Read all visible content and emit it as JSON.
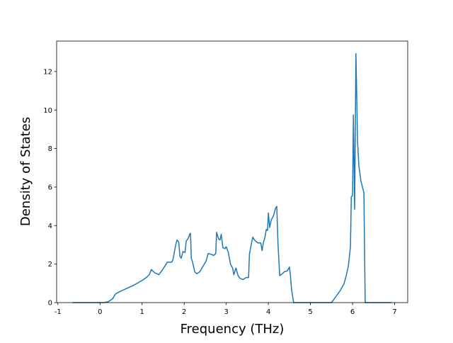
{
  "chart_data": {
    "type": "line",
    "x_label": "Frequency (THz)",
    "y_label": "Density of States",
    "xlim": [
      -1.03,
      7.31
    ],
    "ylim": [
      0,
      13.58
    ],
    "xticks": [
      -1,
      0,
      1,
      2,
      3,
      4,
      5,
      6,
      7
    ],
    "yticks": [
      0,
      2,
      4,
      6,
      8,
      10,
      12
    ],
    "series": [
      {
        "color": "#1f77b4",
        "x": [
          -0.65,
          0.1,
          0.2,
          0.3,
          0.37,
          0.45,
          0.6,
          0.8,
          1.0,
          1.1,
          1.17,
          1.22,
          1.3,
          1.4,
          1.5,
          1.6,
          1.7,
          1.73,
          1.8,
          1.83,
          1.87,
          1.9,
          1.93,
          1.97,
          2.02,
          2.05,
          2.1,
          2.13,
          2.15,
          2.17,
          2.2,
          2.25,
          2.3,
          2.37,
          2.45,
          2.52,
          2.57,
          2.65,
          2.7,
          2.75,
          2.77,
          2.82,
          2.85,
          2.88,
          2.92,
          2.97,
          3.0,
          3.05,
          3.1,
          3.15,
          3.18,
          3.23,
          3.28,
          3.33,
          3.4,
          3.47,
          3.53,
          3.55,
          3.6,
          3.63,
          3.67,
          3.75,
          3.82,
          3.85,
          3.88,
          3.92,
          3.95,
          3.98,
          4.0,
          4.03,
          4.07,
          4.12,
          4.17,
          4.2,
          4.23,
          4.27,
          4.33,
          4.38,
          4.45,
          4.5,
          4.52,
          4.55,
          4.6,
          5.5,
          5.6,
          5.7,
          5.8,
          5.85,
          5.9,
          5.95,
          5.97,
          6.0,
          6.02,
          6.05,
          6.08,
          6.12,
          6.15,
          6.2,
          6.27,
          6.3,
          6.93
        ],
        "values": [
          0,
          0,
          0.05,
          0.2,
          0.45,
          0.55,
          0.7,
          0.9,
          1.15,
          1.3,
          1.45,
          1.72,
          1.55,
          1.45,
          1.75,
          2.1,
          2.1,
          2.2,
          3.0,
          3.25,
          3.15,
          2.4,
          2.3,
          2.65,
          2.6,
          3.2,
          3.35,
          3.55,
          3.6,
          2.3,
          2.1,
          1.6,
          1.5,
          1.6,
          1.9,
          2.15,
          2.55,
          2.5,
          2.45,
          2.55,
          3.65,
          3.3,
          3.25,
          3.55,
          2.85,
          2.8,
          2.9,
          2.6,
          2.0,
          1.8,
          1.45,
          1.8,
          1.4,
          1.25,
          1.2,
          1.3,
          1.3,
          2.5,
          3.1,
          3.4,
          3.25,
          3.1,
          3.1,
          2.7,
          3.1,
          3.4,
          3.8,
          3.75,
          4.65,
          3.9,
          4.3,
          4.5,
          4.9,
          5.0,
          3.0,
          1.4,
          1.5,
          1.6,
          1.65,
          1.85,
          1.5,
          0.7,
          0,
          0,
          0.3,
          0.6,
          1.0,
          1.4,
          1.9,
          2.9,
          5.5,
          5.55,
          9.75,
          4.85,
          12.93,
          8.3,
          7.1,
          6.3,
          5.7,
          0,
          0
        ]
      }
    ]
  }
}
